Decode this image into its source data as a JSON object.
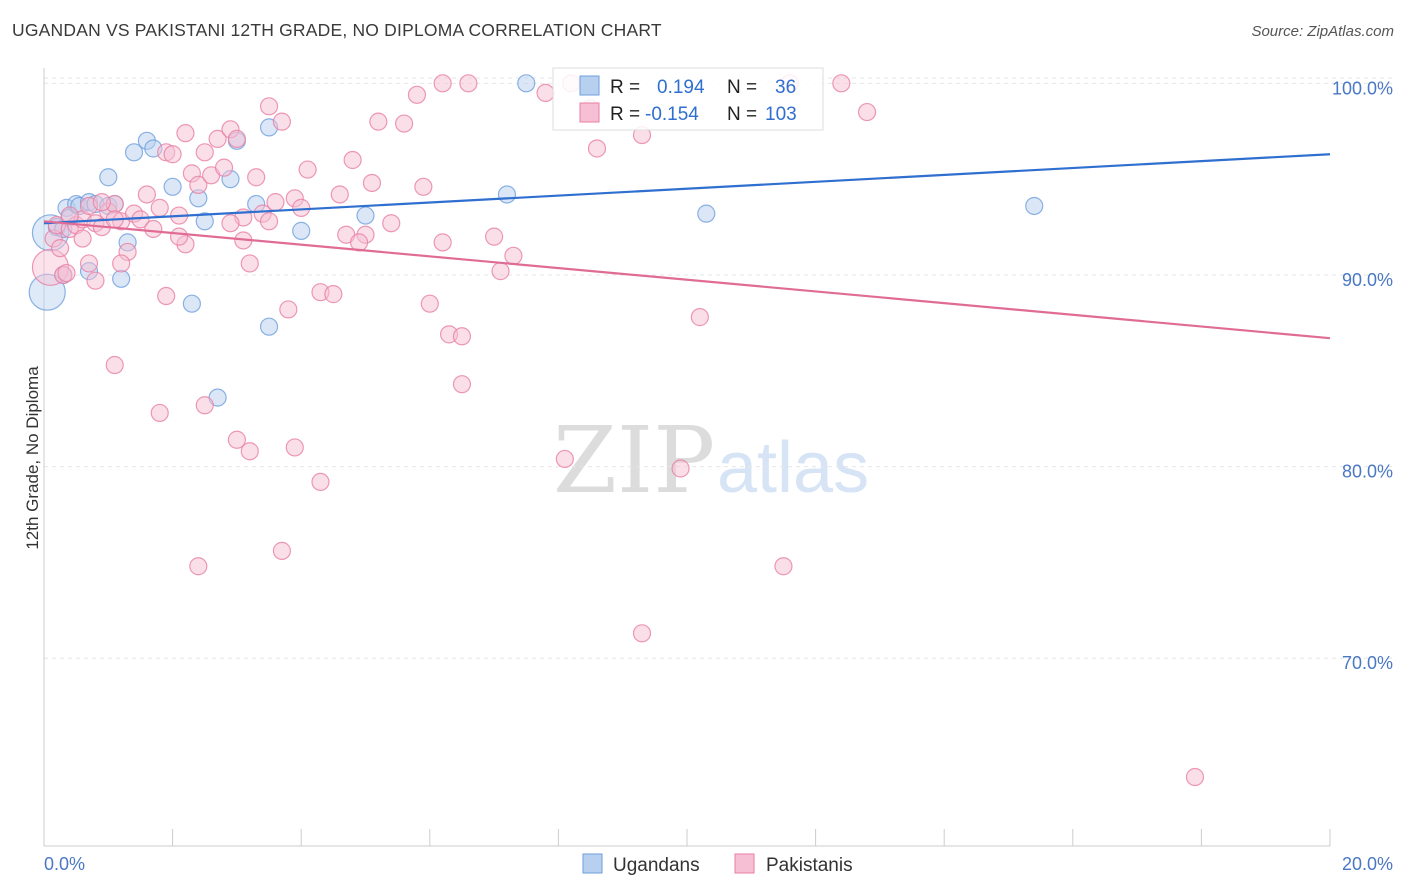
{
  "chart_data": {
    "type": "scatter",
    "title": "UGANDAN VS PAKISTANI 12TH GRADE, NO DIPLOMA CORRELATION CHART",
    "source": "Source: ZipAtlas.com",
    "xlabel": "",
    "ylabel": "12th Grade, No Diploma",
    "xlim": [
      0,
      20
    ],
    "ylim": [
      60.2,
      100.8
    ],
    "x_tick_labels": [
      "0.0%",
      "20.0%"
    ],
    "y_ticks": [
      {
        "value": 100,
        "label": "100.0%"
      },
      {
        "value": 90,
        "label": "90.0%"
      },
      {
        "value": 80,
        "label": "80.0%"
      },
      {
        "value": 70,
        "label": "70.0%"
      }
    ],
    "watermark": {
      "left": "ZIP",
      "right": "atlas"
    },
    "stats": [
      {
        "r_label": "R =",
        "r": "0.194",
        "n_label": "N =",
        "n": "36"
      },
      {
        "r_label": "R =",
        "r": "-0.154",
        "n_label": "N =",
        "n": "103"
      }
    ],
    "series": [
      {
        "name": "Ugandans",
        "color": "#6f9fdc",
        "fill": "#b8d0f0",
        "line_color": "#2f6fcf",
        "trend": {
          "x": [
            0,
            20
          ],
          "y": [
            92.7,
            96.3
          ]
        },
        "points": [
          {
            "x": 0.1,
            "y": 92.2,
            "big": true
          },
          {
            "x": 0.2,
            "y": 92.5
          },
          {
            "x": 0.3,
            "y": 92.4
          },
          {
            "x": 0.35,
            "y": 93.5
          },
          {
            "x": 0.4,
            "y": 93.0
          },
          {
            "x": 0.5,
            "y": 93.7
          },
          {
            "x": 0.55,
            "y": 93.6
          },
          {
            "x": 0.7,
            "y": 93.8
          },
          {
            "x": 0.8,
            "y": 93.7
          },
          {
            "x": 1.0,
            "y": 93.6
          },
          {
            "x": 1.1,
            "y": 93.7
          },
          {
            "x": 1.0,
            "y": 95.1
          },
          {
            "x": 1.4,
            "y": 96.4
          },
          {
            "x": 1.6,
            "y": 97.0
          },
          {
            "x": 1.7,
            "y": 96.6
          },
          {
            "x": 2.0,
            "y": 94.6
          },
          {
            "x": 2.4,
            "y": 94.0
          },
          {
            "x": 2.5,
            "y": 92.8
          },
          {
            "x": 2.9,
            "y": 95.0
          },
          {
            "x": 3.0,
            "y": 97.0
          },
          {
            "x": 3.3,
            "y": 93.7
          },
          {
            "x": 3.5,
            "y": 97.7
          },
          {
            "x": 4.0,
            "y": 92.3
          },
          {
            "x": 5.0,
            "y": 93.1
          },
          {
            "x": 7.2,
            "y": 94.2
          },
          {
            "x": 7.5,
            "y": 100.0
          },
          {
            "x": 10.3,
            "y": 93.2
          },
          {
            "x": 15.4,
            "y": 93.6
          },
          {
            "x": 0.3,
            "y": 90.0
          },
          {
            "x": 0.7,
            "y": 90.2
          },
          {
            "x": 1.2,
            "y": 89.8
          },
          {
            "x": 1.3,
            "y": 91.7
          },
          {
            "x": 2.3,
            "y": 88.5
          },
          {
            "x": 3.5,
            "y": 87.3
          },
          {
            "x": 2.7,
            "y": 83.6
          },
          {
            "x": 0.05,
            "y": 89.1,
            "big": true
          }
        ]
      },
      {
        "name": "Pakistanis",
        "color": "#e87fa4",
        "fill": "#f6bfd3",
        "line_color": "#e06c96",
        "trend": {
          "x": [
            0,
            20
          ],
          "y": [
            92.8,
            86.7
          ]
        },
        "points": [
          {
            "x": 0.1,
            "y": 90.4,
            "big": true
          },
          {
            "x": 0.15,
            "y": 91.9
          },
          {
            "x": 0.2,
            "y": 92.6
          },
          {
            "x": 0.3,
            "y": 90.0
          },
          {
            "x": 0.4,
            "y": 92.4
          },
          {
            "x": 0.5,
            "y": 92.6
          },
          {
            "x": 0.6,
            "y": 92.9
          },
          {
            "x": 0.7,
            "y": 93.6
          },
          {
            "x": 0.8,
            "y": 92.7
          },
          {
            "x": 0.9,
            "y": 92.5
          },
          {
            "x": 1.0,
            "y": 93.3
          },
          {
            "x": 1.1,
            "y": 93.7
          },
          {
            "x": 1.2,
            "y": 92.8
          },
          {
            "x": 1.4,
            "y": 93.2
          },
          {
            "x": 1.5,
            "y": 92.9
          },
          {
            "x": 1.6,
            "y": 94.2
          },
          {
            "x": 1.7,
            "y": 92.4
          },
          {
            "x": 1.8,
            "y": 93.5
          },
          {
            "x": 1.9,
            "y": 96.4
          },
          {
            "x": 2.1,
            "y": 93.1
          },
          {
            "x": 2.2,
            "y": 97.4
          },
          {
            "x": 2.3,
            "y": 95.3
          },
          {
            "x": 2.4,
            "y": 94.7
          },
          {
            "x": 2.5,
            "y": 96.4
          },
          {
            "x": 2.6,
            "y": 95.2
          },
          {
            "x": 2.7,
            "y": 97.1
          },
          {
            "x": 2.8,
            "y": 95.6
          },
          {
            "x": 2.9,
            "y": 97.6
          },
          {
            "x": 3.0,
            "y": 97.1
          },
          {
            "x": 3.1,
            "y": 93.0
          },
          {
            "x": 3.3,
            "y": 95.1
          },
          {
            "x": 3.4,
            "y": 93.2
          },
          {
            "x": 3.5,
            "y": 98.8
          },
          {
            "x": 3.6,
            "y": 93.8
          },
          {
            "x": 3.7,
            "y": 98.0
          },
          {
            "x": 3.9,
            "y": 94.0
          },
          {
            "x": 4.1,
            "y": 95.5
          },
          {
            "x": 4.3,
            "y": 89.1
          },
          {
            "x": 4.5,
            "y": 89.0
          },
          {
            "x": 4.6,
            "y": 94.2
          },
          {
            "x": 4.7,
            "y": 92.1
          },
          {
            "x": 4.8,
            "y": 96.0
          },
          {
            "x": 5.0,
            "y": 92.1
          },
          {
            "x": 5.1,
            "y": 94.8
          },
          {
            "x": 5.2,
            "y": 98.0
          },
          {
            "x": 5.6,
            "y": 97.9
          },
          {
            "x": 5.8,
            "y": 99.4
          },
          {
            "x": 5.9,
            "y": 94.6
          },
          {
            "x": 6.0,
            "y": 88.5
          },
          {
            "x": 6.2,
            "y": 100.0
          },
          {
            "x": 6.3,
            "y": 86.9
          },
          {
            "x": 6.5,
            "y": 86.8
          },
          {
            "x": 6.6,
            "y": 100.0
          },
          {
            "x": 6.5,
            "y": 84.3
          },
          {
            "x": 7.0,
            "y": 92.0
          },
          {
            "x": 7.3,
            "y": 91.0
          },
          {
            "x": 7.8,
            "y": 99.5
          },
          {
            "x": 8.2,
            "y": 100.0
          },
          {
            "x": 8.6,
            "y": 96.6
          },
          {
            "x": 8.5,
            "y": 98.7
          },
          {
            "x": 9.3,
            "y": 97.3
          },
          {
            "x": 9.9,
            "y": 79.9
          },
          {
            "x": 10.2,
            "y": 87.8
          },
          {
            "x": 11.6,
            "y": 100.0
          },
          {
            "x": 12.4,
            "y": 100.0
          },
          {
            "x": 12.8,
            "y": 98.5
          },
          {
            "x": 8.1,
            "y": 80.4
          },
          {
            "x": 11.5,
            "y": 74.8
          },
          {
            "x": 9.3,
            "y": 71.3
          },
          {
            "x": 17.9,
            "y": 63.8
          },
          {
            "x": 1.1,
            "y": 85.3
          },
          {
            "x": 1.8,
            "y": 82.8
          },
          {
            "x": 2.5,
            "y": 83.2
          },
          {
            "x": 3.0,
            "y": 81.4
          },
          {
            "x": 3.2,
            "y": 80.8
          },
          {
            "x": 3.9,
            "y": 81.0
          },
          {
            "x": 4.3,
            "y": 79.2
          },
          {
            "x": 2.4,
            "y": 74.8
          },
          {
            "x": 3.7,
            "y": 75.6
          },
          {
            "x": 0.6,
            "y": 91.9
          },
          {
            "x": 0.8,
            "y": 89.7
          },
          {
            "x": 1.3,
            "y": 91.2
          },
          {
            "x": 1.9,
            "y": 88.9
          },
          {
            "x": 2.2,
            "y": 91.6
          },
          {
            "x": 3.1,
            "y": 91.8
          },
          {
            "x": 3.2,
            "y": 90.6
          },
          {
            "x": 3.8,
            "y": 88.2
          },
          {
            "x": 4.9,
            "y": 91.7
          },
          {
            "x": 5.4,
            "y": 92.7
          },
          {
            "x": 6.2,
            "y": 91.7
          },
          {
            "x": 7.1,
            "y": 90.2
          },
          {
            "x": 2.1,
            "y": 92.0
          },
          {
            "x": 1.2,
            "y": 90.6
          },
          {
            "x": 0.4,
            "y": 93.1
          },
          {
            "x": 0.9,
            "y": 93.8
          },
          {
            "x": 2.9,
            "y": 92.7
          },
          {
            "x": 1.1,
            "y": 92.9
          },
          {
            "x": 0.25,
            "y": 91.4
          },
          {
            "x": 0.7,
            "y": 90.6
          },
          {
            "x": 2.0,
            "y": 96.3
          },
          {
            "x": 3.5,
            "y": 92.8
          },
          {
            "x": 4.0,
            "y": 93.5
          },
          {
            "x": 0.35,
            "y": 90.1
          }
        ]
      }
    ]
  }
}
